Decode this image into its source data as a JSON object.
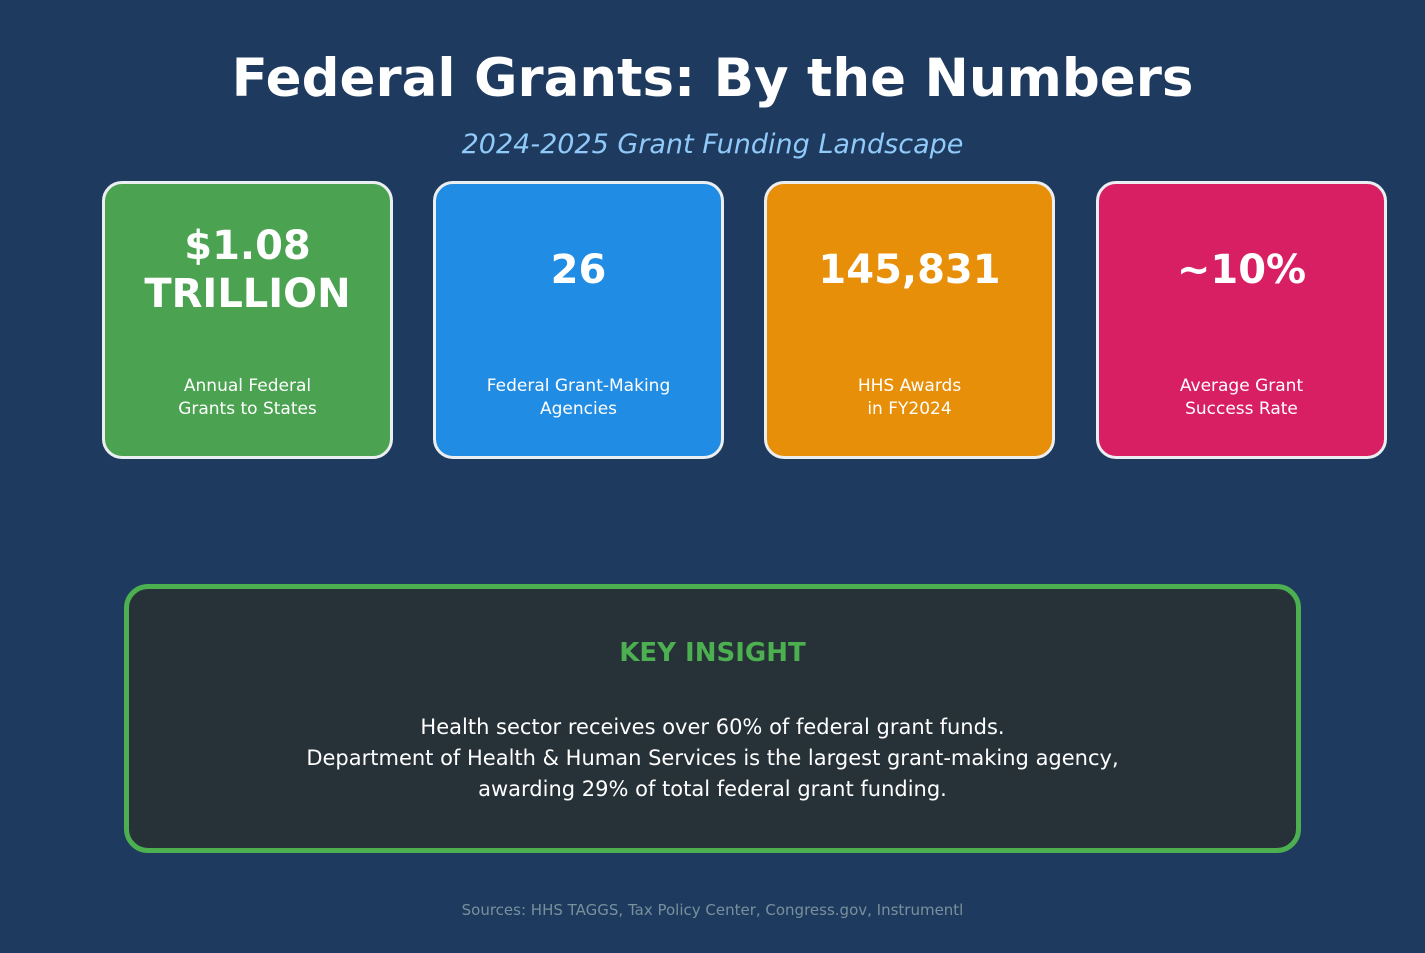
{
  "header": {
    "title": "Federal Grants: By the Numbers",
    "subtitle": "2024-2025 Grant Funding Landscape"
  },
  "cards": [
    {
      "value": "$1.08\nTRILLION",
      "label": "Annual Federal\nGrants to States",
      "color": "#4ba351"
    },
    {
      "value": "26",
      "label": "Federal Grant-Making\nAgencies",
      "color": "#218ce4"
    },
    {
      "value": "145,831",
      "label": "HHS Awards\nin FY2024",
      "color": "#e88f0a"
    },
    {
      "value": "~10%",
      "label": "Average Grant\nSuccess Rate",
      "color": "#d81f63"
    }
  ],
  "insight": {
    "heading": "KEY INSIGHT",
    "body": "Health sector receives over 60% of federal grant funds.\nDepartment of Health & Human Services is the largest grant-making agency,\nawarding 29% of total federal grant funding.",
    "border_color": "#4caf50"
  },
  "footer": {
    "sources": "Sources: HHS TAGGS, Tax Policy Center, Congress.gov, Instrumentl"
  }
}
